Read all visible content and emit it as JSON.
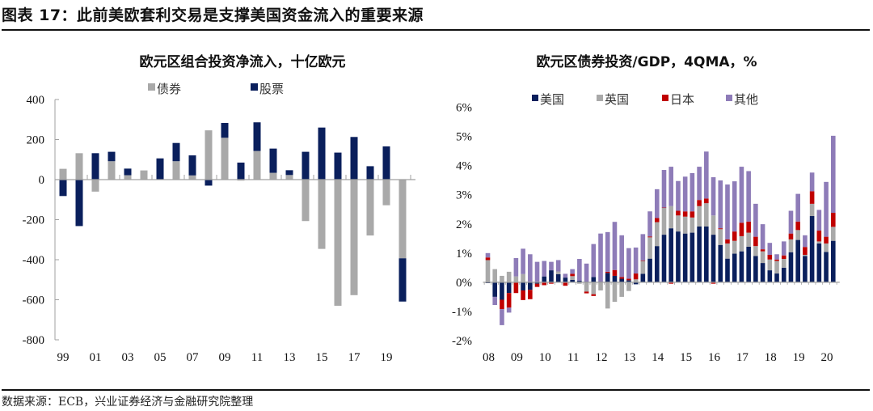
{
  "header": {
    "title": "图表 17：此前美欧套利交易是支撑美国资金流入的重要来源"
  },
  "footer": {
    "source": "数据来源：ECB，兴业证券经济与金融研究院整理"
  },
  "colors": {
    "navy": "#0a1f5c",
    "gray": "#a9a9a9",
    "red": "#c00000",
    "purple": "#8e7cb8",
    "axis": "#a0a0a0"
  },
  "chart_data": [
    {
      "type": "bar",
      "stacked": true,
      "title": "欧元区组合投资净流入，十亿欧元",
      "xlabel": "",
      "ylabel": "",
      "ylim": [
        -800,
        400
      ],
      "yticks": [
        400,
        200,
        0,
        -200,
        -400,
        -600,
        -800
      ],
      "ytick_labels": [
        "400",
        "200",
        "0",
        "-200",
        "-400",
        "-600",
        "-800"
      ],
      "categories": [
        "99",
        "00",
        "01",
        "02",
        "03",
        "04",
        "05",
        "06",
        "07",
        "08",
        "09",
        "10",
        "11",
        "12",
        "13",
        "14",
        "15",
        "16",
        "17",
        "18",
        "19",
        "20"
      ],
      "xtick_labels": [
        "99",
        "01",
        "03",
        "05",
        "07",
        "09",
        "11",
        "13",
        "15",
        "17",
        "19"
      ],
      "legend_position": "top",
      "grid": false,
      "series": [
        {
          "name": "债券",
          "color": "#a9a9a9",
          "values": [
            54,
            132,
            -60,
            92,
            22,
            46,
            0,
            92,
            21,
            246,
            209,
            -5,
            143,
            34,
            23,
            -207,
            -346,
            -630,
            -577,
            -279,
            -128,
            -393
          ]
        },
        {
          "name": "股票",
          "color": "#0a1f5c",
          "values": [
            -82,
            -232,
            132,
            47,
            33,
            0,
            106,
            91,
            100,
            -30,
            74,
            85,
            143,
            121,
            24,
            139,
            260,
            135,
            213,
            67,
            166,
            -216
          ]
        }
      ]
    },
    {
      "type": "bar",
      "stacked": true,
      "title": "欧元区债券投资/GDP，4QMA，%",
      "xlabel": "",
      "ylabel": "",
      "ylim": [
        -2,
        6
      ],
      "yticks": [
        6,
        5,
        4,
        3,
        2,
        1,
        0,
        -1,
        -2
      ],
      "ytick_labels": [
        "6%",
        "5%",
        "4%",
        "3%",
        "2%",
        "1%",
        "0%",
        "-1%",
        "-2%"
      ],
      "xtick_labels": [
        "08",
        "09",
        "10",
        "11",
        "12",
        "13",
        "14",
        "15",
        "16",
        "17",
        "18",
        "19",
        "20"
      ],
      "x": "quarterly 2008Q1-2020Q2",
      "legend_position": "top",
      "grid": false,
      "series": [
        {
          "name": "美国",
          "color": "#0a1f5c",
          "values": [
            -0.03,
            -0.5,
            -0.6,
            -0.37,
            0,
            -0.28,
            -0.26,
            -0.05,
            0.2,
            0.41,
            0.28,
            0.16,
            0.08,
            0.05,
            0.02,
            0.18,
            0.02,
            0.32,
            0.22,
            0.12,
            0.07,
            -0.07,
            0.29,
            0.81,
            1.24,
            1.63,
            1.85,
            1.74,
            1.67,
            1.7,
            1.91,
            1.91,
            1.63,
            1.28,
            0.81,
            0.98,
            1.06,
            1.22,
            0.9,
            0.66,
            0.41,
            0.3,
            0.5,
            1.03,
            1.45,
            0.9,
            2.27,
            1.33,
            1.04,
            1.42
          ]
        },
        {
          "name": "英国",
          "color": "#a9a9a9",
          "values": [
            0.76,
            0.45,
            0.22,
            0.36,
            0.2,
            0.28,
            0,
            0,
            0,
            0,
            0.09,
            0,
            0.13,
            -0.05,
            -0.32,
            -0.41,
            -0.28,
            -0.9,
            -0.67,
            -0.5,
            -0.3,
            0.1,
            0.44,
            0.73,
            0.82,
            0.92,
            0.76,
            0.55,
            0.58,
            0.52,
            0.7,
            0.8,
            0.66,
            0.54,
            0.52,
            0.44,
            0.52,
            0.48,
            0.34,
            0.4,
            0.37,
            0.43,
            0.3,
            0.44,
            0.34,
            0.04,
            0.42,
            0.07,
            0.29,
            0.48
          ]
        },
        {
          "name": "日本",
          "color": "#c00000",
          "values": [
            0.09,
            0,
            -0.32,
            -0.5,
            -0.37,
            -0.33,
            -0.32,
            -0.11,
            -0.1,
            -0.05,
            0,
            -0.12,
            0.08,
            0,
            -0.06,
            -0.06,
            0,
            0.04,
            0.2,
            0.06,
            0.05,
            0.2,
            0.02,
            0.03,
            0.14,
            0.01,
            -0.05,
            0.16,
            0.18,
            0.21,
            0.21,
            0.16,
            -0.05,
            0.03,
            0.14,
            0.32,
            0.46,
            0.38,
            0.32,
            0.07,
            0.16,
            0.05,
            0.12,
            0.2,
            0.29,
            0.27,
            0.43,
            0.37,
            0.23,
            0.48
          ]
        },
        {
          "name": "其他",
          "color": "#8e7cb8",
          "values": [
            0.15,
            -0.28,
            -0.55,
            -0.17,
            0.63,
            0.87,
            0.96,
            0.7,
            0.53,
            0.29,
            0.39,
            0.13,
            0.16,
            0.75,
            0.62,
            1.13,
            1.65,
            1.36,
            1.65,
            1.43,
            1.05,
            0.89,
            0.9,
            0.86,
            0.99,
            1.29,
            1.35,
            1.02,
            1.19,
            1.31,
            1.14,
            1.61,
            1.31,
            1.64,
            1.88,
            1.72,
            1.92,
            1.73,
            1.13,
            0.86,
            0.41,
            0.18,
            0.48,
            0.78,
            0.95,
            0.4,
            0.64,
            0.71,
            1.88,
            2.64
          ]
        }
      ]
    }
  ]
}
